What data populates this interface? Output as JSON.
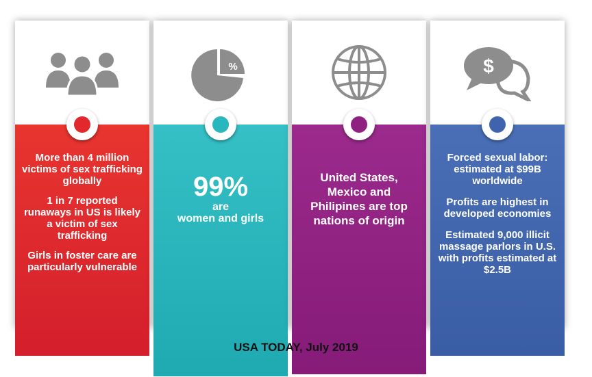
{
  "colors": {
    "panel1": "#e0282d",
    "panel2": "#2ab6bd",
    "panel3": "#8f2181",
    "panel4": "#3f64ad",
    "icon": "#8d8d8d"
  },
  "icons": [
    "people-icon",
    "pie-chart-percent-icon",
    "globe-icon",
    "speech-bubbles-dollar-icon"
  ],
  "panel1": {
    "lines": [
      "More than 4 million victims of sex trafficking globally",
      "1 in 7 reported runaways in US is likely a victim of sex trafficking",
      "Girls in foster care are particularly vulnerable"
    ]
  },
  "panel2": {
    "icon_label": "%",
    "big": "99%",
    "line1": "are",
    "line2": "women and girls"
  },
  "panel3": {
    "text": "United States, Mexico and Philipines are top nations of origin"
  },
  "panel4": {
    "icon_label": "$",
    "lines": [
      "Forced sexual labor: estimated at $99B worldwide",
      "Profits are highest in developed economies",
      "Estimated 9,000 illicit massage parlors in U.S. with profits estimated at $2.5B"
    ]
  },
  "source": "USA TODAY, July 2019"
}
